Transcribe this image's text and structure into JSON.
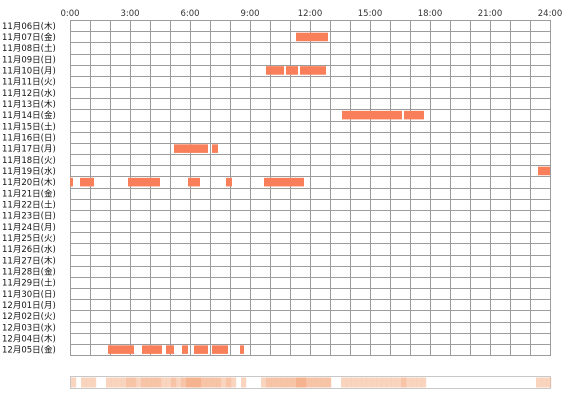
{
  "chart_data": {
    "type": "heatmap",
    "x_ticks": [
      "0:00",
      "3:00",
      "6:00",
      "9:00",
      "12:00",
      "15:00",
      "18:00",
      "21:00",
      "24:00"
    ],
    "x_range_hours": [
      0,
      24
    ],
    "grid": true,
    "colors": {
      "bar": "#f97f5a",
      "bar_edge": "#e8704c",
      "grid": "#9c9c9c",
      "summary_base": "#fbeee6",
      "summary_hot": "#f5b48f"
    },
    "days": [
      {
        "label": "11月06日(木)",
        "segments": []
      },
      {
        "label": "11月07日(金)",
        "segments": [
          [
            11.3,
            12.9
          ]
        ]
      },
      {
        "label": "11月08日(土)",
        "segments": []
      },
      {
        "label": "11月09日(日)",
        "segments": []
      },
      {
        "label": "11月10日(月)",
        "segments": [
          [
            9.8,
            10.7
          ],
          [
            10.8,
            11.4
          ],
          [
            11.5,
            12.8
          ]
        ]
      },
      {
        "label": "11月11日(火)",
        "segments": []
      },
      {
        "label": "11月12日(水)",
        "segments": []
      },
      {
        "label": "11月13日(木)",
        "segments": []
      },
      {
        "label": "11月14日(金)",
        "segments": [
          [
            13.6,
            16.6
          ],
          [
            16.7,
            17.7
          ]
        ]
      },
      {
        "label": "11月15日(土)",
        "segments": []
      },
      {
        "label": "11月16日(日)",
        "segments": []
      },
      {
        "label": "11月17日(月)",
        "segments": [
          [
            5.2,
            6.9
          ],
          [
            7.1,
            7.4
          ]
        ]
      },
      {
        "label": "11月18日(火)",
        "segments": []
      },
      {
        "label": "11月19日(水)",
        "segments": [
          [
            23.4,
            24.0
          ]
        ]
      },
      {
        "label": "11月20日(木)",
        "segments": [
          [
            0.0,
            0.15
          ],
          [
            0.5,
            1.2
          ],
          [
            2.9,
            4.5
          ],
          [
            5.9,
            6.5
          ],
          [
            7.8,
            8.1
          ],
          [
            9.7,
            11.7
          ]
        ]
      },
      {
        "label": "11月21日(金)",
        "segments": []
      },
      {
        "label": "11月22日(土)",
        "segments": []
      },
      {
        "label": "11月23日(日)",
        "segments": []
      },
      {
        "label": "11月24日(月)",
        "segments": []
      },
      {
        "label": "11月25日(火)",
        "segments": []
      },
      {
        "label": "11月26日(水)",
        "segments": []
      },
      {
        "label": "11月27日(木)",
        "segments": []
      },
      {
        "label": "11月28日(金)",
        "segments": []
      },
      {
        "label": "11月29日(土)",
        "segments": []
      },
      {
        "label": "11月30日(日)",
        "segments": []
      },
      {
        "label": "12月01日(月)",
        "segments": []
      },
      {
        "label": "12月02日(火)",
        "segments": []
      },
      {
        "label": "12月03日(水)",
        "segments": []
      },
      {
        "label": "12月04日(木)",
        "segments": []
      },
      {
        "label": "12月05日(金)",
        "segments": [
          [
            1.9,
            3.2
          ],
          [
            3.6,
            4.6
          ],
          [
            4.8,
            5.2
          ],
          [
            5.6,
            5.9
          ],
          [
            6.2,
            6.9
          ],
          [
            7.1,
            7.9
          ],
          [
            8.5,
            8.7
          ]
        ]
      }
    ]
  }
}
